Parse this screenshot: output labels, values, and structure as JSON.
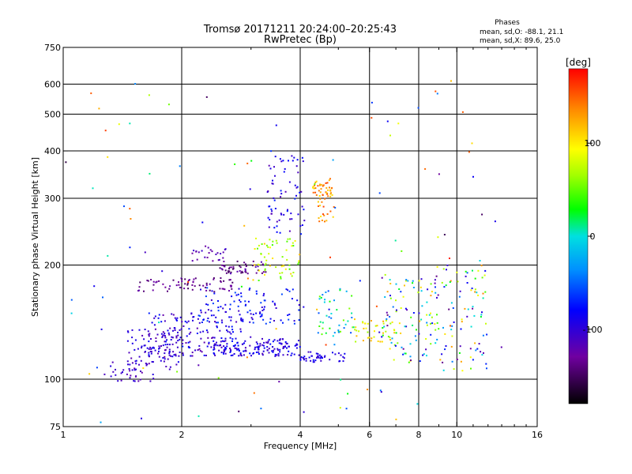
{
  "chart_data": {
    "type": "scatter",
    "title": "Tromsø 20171211 20:24:00–20:25:43",
    "subtitle": "RwPretec (Bp)",
    "xlabel": "Frequency [MHz]",
    "ylabel": "Stationary phase Virtual Height [km]",
    "x_scale": "log",
    "y_scale": "log",
    "xlim": [
      1,
      16
    ],
    "ylim": [
      75,
      750
    ],
    "x_ticks": [
      1,
      2,
      4,
      6,
      8,
      10,
      16
    ],
    "x_minor_ticks": [
      3,
      5,
      7,
      9,
      11,
      12,
      13,
      14,
      15
    ],
    "y_ticks": [
      75,
      100,
      200,
      300,
      400,
      500,
      600,
      750
    ],
    "grid": true,
    "legend": {
      "heading": "Phases",
      "line1": "mean, sd,O: -88.1, 21.1",
      "line2": "mean, sd,X:  89.6, 25.0"
    },
    "colorbar": {
      "label": "[deg]",
      "range": [
        -180,
        180
      ],
      "ticks": [
        100,
        0,
        -100
      ]
    },
    "clusters": [
      {
        "f": [
          1.25,
          1.7
        ],
        "h": [
          98,
          112
        ],
        "n": 40,
        "p": [
          -125,
          -95
        ]
      },
      {
        "f": [
          1.45,
          2.0
        ],
        "h": [
          105,
          135
        ],
        "n": 80,
        "p": [
          -120,
          -85
        ]
      },
      {
        "f": [
          1.6,
          3.0
        ],
        "h": [
          115,
          150
        ],
        "n": 170,
        "p": [
          -125,
          -70
        ]
      },
      {
        "f": [
          2.4,
          4.0
        ],
        "h": [
          115,
          128
        ],
        "n": 140,
        "p": [
          -115,
          -75
        ]
      },
      {
        "f": [
          2.2,
          4.2
        ],
        "h": [
          140,
          175
        ],
        "n": 110,
        "p": [
          -110,
          -55
        ]
      },
      {
        "f": [
          1.55,
          2.7
        ],
        "h": [
          170,
          185
        ],
        "n": 70,
        "p": [
          -150,
          -120
        ]
      },
      {
        "f": [
          2.5,
          3.3
        ],
        "h": [
          190,
          205
        ],
        "n": 50,
        "p": [
          -150,
          -115
        ]
      },
      {
        "f": [
          2.1,
          2.6
        ],
        "h": [
          205,
          225
        ],
        "n": 25,
        "p": [
          -130,
          -100
        ]
      },
      {
        "f": [
          3.0,
          4.0
        ],
        "h": [
          180,
          240
        ],
        "n": 60,
        "p": [
          40,
          120
        ]
      },
      {
        "f": [
          3.3,
          4.1
        ],
        "h": [
          240,
          390
        ],
        "n": 70,
        "p": [
          -120,
          -70
        ]
      },
      {
        "f": [
          4.3,
          4.9
        ],
        "h": [
          260,
          340
        ],
        "n": 60,
        "p": [
          100,
          160
        ]
      },
      {
        "f": [
          4.0,
          5.2
        ],
        "h": [
          111,
          118
        ],
        "n": 45,
        "p": [
          -110,
          -80
        ]
      },
      {
        "f": [
          4.4,
          5.5
        ],
        "h": [
          130,
          175
        ],
        "n": 45,
        "p": [
          -60,
          60
        ]
      },
      {
        "f": [
          5.5,
          7.0
        ],
        "h": [
          125,
          145
        ],
        "n": 40,
        "p": [
          60,
          130
        ]
      },
      {
        "f": [
          6.3,
          9.0
        ],
        "h": [
          110,
          190
        ],
        "n": 110,
        "p": [
          -140,
          130
        ]
      },
      {
        "f": [
          9.0,
          12.0
        ],
        "h": [
          105,
          200
        ],
        "n": 80,
        "p": [
          -140,
          140
        ]
      },
      {
        "f": [
          1.0,
          13.0
        ],
        "h": [
          76,
          640
        ],
        "n": 110,
        "p": [
          -160,
          170
        ]
      }
    ]
  }
}
